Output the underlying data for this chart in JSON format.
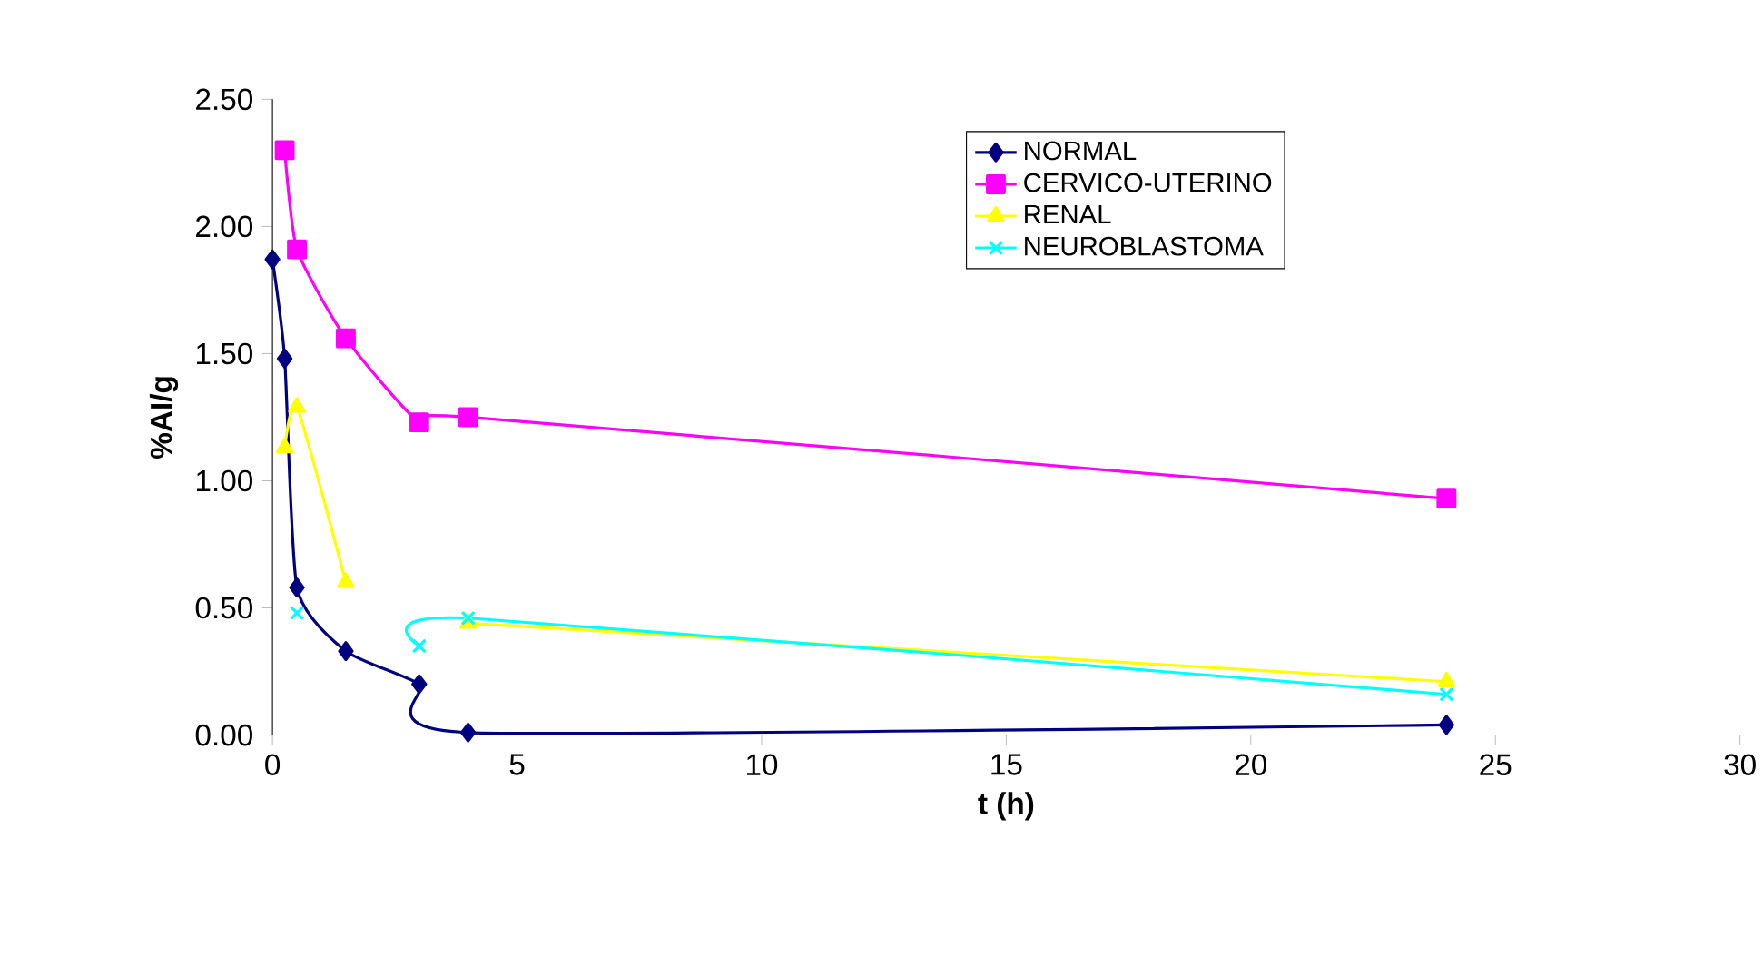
{
  "chart_data": {
    "type": "line",
    "xlabel": "t (h)",
    "ylabel": "%AI/g",
    "xlim": [
      0,
      30
    ],
    "xticks": [
      0,
      5,
      10,
      15,
      20,
      25,
      30
    ],
    "ylim": [
      0,
      2.5
    ],
    "yticks": [
      {
        "value": 0,
        "label": "0.00"
      },
      {
        "value": 0.5,
        "label": "0.50"
      },
      {
        "value": 1,
        "label": "1.00"
      },
      {
        "value": 1.5,
        "label": "1.50"
      },
      {
        "value": 2,
        "label": "2.00"
      },
      {
        "value": 2.5,
        "label": "2.50"
      }
    ],
    "grid": false,
    "legend": "top right",
    "series": [
      {
        "name": "NORMAL",
        "color": "#000080",
        "marker": "diamond",
        "x": [
          0,
          0.25,
          0.5,
          1.5,
          3,
          4,
          24
        ],
        "values": [
          1.87,
          1.48,
          0.58,
          0.33,
          0.2,
          0.01,
          0.04
        ]
      },
      {
        "name": "CERVICO-UTERINO",
        "color": "#ff00ff",
        "marker": "square",
        "x": [
          0.25,
          0.5,
          1.5,
          3,
          4,
          24
        ],
        "values": [
          2.3,
          1.91,
          1.56,
          1.23,
          1.25,
          0.93
        ]
      },
      {
        "name": "RENAL",
        "color": "#ffff00",
        "marker": "triangle",
        "x": [
          0.25,
          0.5,
          1.5,
          3,
          4,
          24
        ],
        "values": [
          1.13,
          1.29,
          0.6,
          null,
          0.44,
          0.21
        ]
      },
      {
        "name": "NEUROBLASTOMA",
        "color": "#00ffff",
        "marker": "cross",
        "x": [
          0.5,
          1.5,
          3,
          4,
          24
        ],
        "values": [
          0.48,
          null,
          0.35,
          0.46,
          0.16
        ]
      }
    ]
  }
}
